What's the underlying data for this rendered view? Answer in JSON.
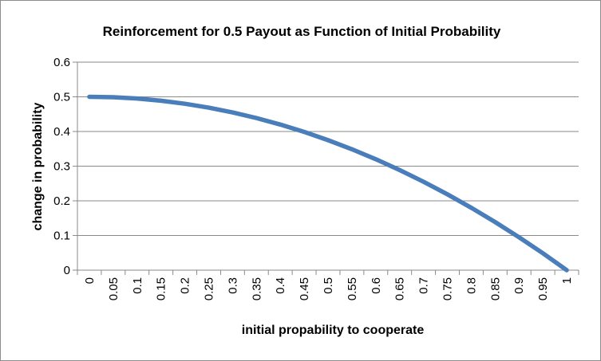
{
  "chart_data": {
    "type": "line",
    "title": "Reinforcement for 0.5 Payout as Function of Initial Probability",
    "xlabel": "initial propability to cooperate",
    "ylabel": "change in probability",
    "categories": [
      "0",
      "0.05",
      "0.1",
      "0.15",
      "0.2",
      "0.25",
      "0.3",
      "0.35",
      "0.4",
      "0.45",
      "0.5",
      "0.55",
      "0.6",
      "0.65",
      "0.7",
      "0.75",
      "0.8",
      "0.85",
      "0.9",
      "0.95",
      "1"
    ],
    "series": [
      {
        "values": [
          0.5,
          0.4988,
          0.495,
          0.4888,
          0.48,
          0.4688,
          0.455,
          0.4388,
          0.42,
          0.3988,
          0.375,
          0.3488,
          0.32,
          0.2888,
          0.255,
          0.2188,
          0.18,
          0.1388,
          0.095,
          0.0488,
          0.0
        ]
      }
    ],
    "ylim": [
      0,
      0.6
    ],
    "yticks": [
      "0",
      "0.1",
      "0.2",
      "0.3",
      "0.4",
      "0.5",
      "0.6"
    ],
    "grid": true,
    "legend": "none",
    "line_color": "#4a7ebb"
  }
}
